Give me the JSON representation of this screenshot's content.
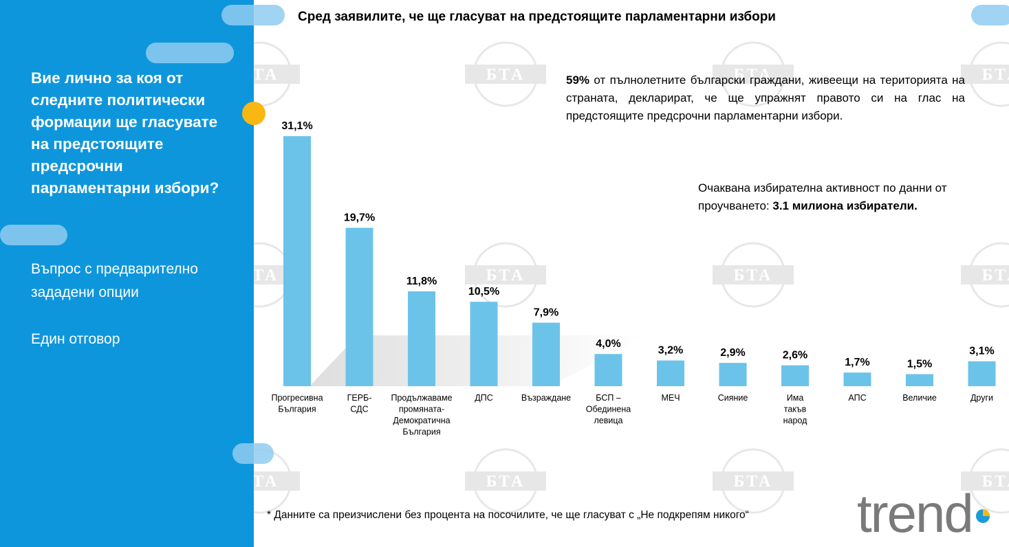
{
  "sidebar": {
    "question": "Вие лично за коя от следните политически формации ще гласувате на предстоящите предсрочни парламентарни избори?",
    "note_option_line1": "Въпрос с предварително",
    "note_option_line2": "зададени опции",
    "note_answer": "Един отговор"
  },
  "header": {
    "title": "Сред заявилите, че ще гласуват на предстоящите парламентарни избори"
  },
  "info": {
    "percent": "59%",
    "percent_text": " от пълнолетните български граждани, живеещи на територията на страната, декларират, че ще упражнят правото си на глас на предстоящите предсрочни парламентарни избори.",
    "turnout_text": "Очаквана избирателна активност по данни от проучването: ",
    "turnout_value": "3.1 милиона избиратели."
  },
  "footnote": "* Данните са преизчислени без процента на посочилите, че ще гласуват с „Не подкрепям никого“",
  "logo_text": "trend",
  "watermark_text": "БТА",
  "chart_data": {
    "type": "bar",
    "title": "Сред заявилите, че ще гласуват на предстоящите парламентарни избори",
    "xlabel": "",
    "ylabel": "",
    "ylim": [
      0,
      35
    ],
    "categories": [
      [
        "Прогресивна",
        "България"
      ],
      [
        "ГЕРБ-",
        "СДС"
      ],
      [
        "Продължаваме",
        "промяната-",
        "Демократична",
        "България"
      ],
      [
        "ДПС"
      ],
      [
        "Възраждане"
      ],
      [
        "БСП –",
        "Обединена",
        "левица"
      ],
      [
        "МЕЧ"
      ],
      [
        "Сияние"
      ],
      [
        "Има",
        "такъв",
        "народ"
      ],
      [
        "АПС"
      ],
      [
        "Величие"
      ],
      [
        "Други"
      ]
    ],
    "values": [
      31.1,
      19.7,
      11.8,
      10.5,
      7.9,
      4.0,
      3.2,
      2.9,
      2.6,
      1.7,
      1.5,
      3.1
    ],
    "value_labels": [
      "31,1%",
      "19,7%",
      "11,8%",
      "10,5%",
      "7,9%",
      "4,0%",
      "3,2%",
      "2,9%",
      "2,6%",
      "1,7%",
      "1,5%",
      "3,1%"
    ],
    "bar_color": "#6cc3ea",
    "grid": false
  },
  "colors": {
    "panel": "#0e96dc",
    "pill": "#8fcdf0",
    "accent_dot": "#f9b712",
    "logo_gray": "#7a7a7a",
    "logo_blue": "#1b9bd8",
    "logo_yellow": "#f9b712"
  }
}
